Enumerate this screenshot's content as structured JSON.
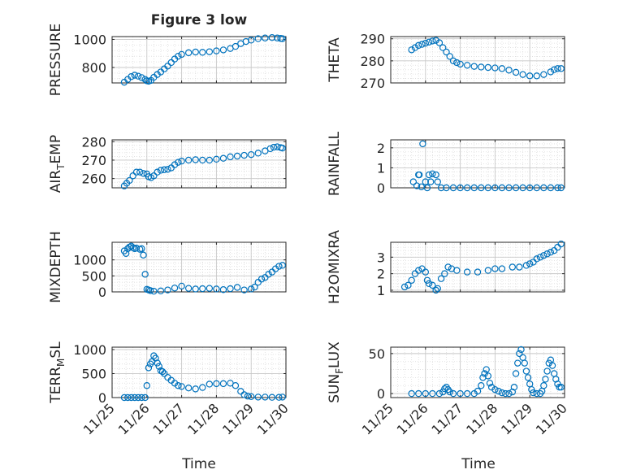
{
  "title": "Figure 3 low",
  "x_tick_labels": [
    "11/25",
    "11/26",
    "11/27",
    "11/28",
    "11/29",
    "11/30"
  ],
  "xlabel": "Time",
  "marker_color": "#0072BD",
  "chart_data": [
    {
      "type": "scatter",
      "ylabel": "PRESSURE",
      "xlim": [
        0,
        5
      ],
      "ylim": [
        690,
        1020
      ],
      "yticks": [
        800,
        1000
      ],
      "grid": true,
      "minor_grid": true,
      "points": [
        [
          0.35,
          695
        ],
        [
          0.45,
          715
        ],
        [
          0.55,
          735
        ],
        [
          0.65,
          745
        ],
        [
          0.75,
          738
        ],
        [
          0.85,
          728
        ],
        [
          0.95,
          715
        ],
        [
          1.0,
          705
        ],
        [
          1.05,
          702
        ],
        [
          1.12,
          708
        ],
        [
          1.2,
          730
        ],
        [
          1.3,
          750
        ],
        [
          1.4,
          768
        ],
        [
          1.5,
          790
        ],
        [
          1.6,
          810
        ],
        [
          1.7,
          835
        ],
        [
          1.8,
          860
        ],
        [
          1.9,
          880
        ],
        [
          2.0,
          893
        ],
        [
          2.2,
          905
        ],
        [
          2.4,
          910
        ],
        [
          2.6,
          908
        ],
        [
          2.8,
          912
        ],
        [
          3.0,
          918
        ],
        [
          3.2,
          925
        ],
        [
          3.4,
          935
        ],
        [
          3.55,
          950
        ],
        [
          3.7,
          970
        ],
        [
          3.85,
          985
        ],
        [
          4.0,
          995
        ],
        [
          4.2,
          1005
        ],
        [
          4.4,
          1010
        ],
        [
          4.6,
          1013
        ],
        [
          4.75,
          1010
        ],
        [
          4.85,
          1007
        ],
        [
          4.9,
          1005
        ]
      ]
    },
    {
      "type": "scatter",
      "ylabel": "THETA",
      "xlim": [
        0,
        5
      ],
      "ylim": [
        270,
        291
      ],
      "yticks": [
        270,
        280,
        290
      ],
      "grid": true,
      "minor_grid": true,
      "points": [
        [
          0.6,
          285
        ],
        [
          0.7,
          286
        ],
        [
          0.8,
          287
        ],
        [
          0.9,
          287.5
        ],
        [
          1.0,
          288
        ],
        [
          1.1,
          288.5
        ],
        [
          1.2,
          289
        ],
        [
          1.3,
          289.3
        ],
        [
          1.4,
          288.2
        ],
        [
          1.5,
          286
        ],
        [
          1.6,
          284
        ],
        [
          1.7,
          282
        ],
        [
          1.8,
          280
        ],
        [
          1.9,
          279.2
        ],
        [
          2.0,
          278.5
        ],
        [
          2.2,
          278
        ],
        [
          2.4,
          277.5
        ],
        [
          2.6,
          277.2
        ],
        [
          2.8,
          277
        ],
        [
          3.0,
          276.8
        ],
        [
          3.2,
          276.5
        ],
        [
          3.4,
          275.8
        ],
        [
          3.6,
          274.8
        ],
        [
          3.8,
          273.8
        ],
        [
          4.0,
          273.2
        ],
        [
          4.2,
          273.2
        ],
        [
          4.4,
          273.8
        ],
        [
          4.6,
          275
        ],
        [
          4.7,
          276
        ],
        [
          4.8,
          276.5
        ],
        [
          4.9,
          276.5
        ]
      ]
    },
    {
      "type": "scatter",
      "ylabel": "AIR_TEMP",
      "xlim": [
        0,
        5
      ],
      "ylim": [
        255,
        281
      ],
      "yticks": [
        260,
        270,
        280
      ],
      "grid": true,
      "minor_grid": true,
      "points": [
        [
          0.35,
          256
        ],
        [
          0.42,
          257.5
        ],
        [
          0.5,
          259
        ],
        [
          0.6,
          261.5
        ],
        [
          0.7,
          263.5
        ],
        [
          0.8,
          263.5
        ],
        [
          0.9,
          262.8
        ],
        [
          1.0,
          262.5
        ],
        [
          1.05,
          261
        ],
        [
          1.12,
          260.5
        ],
        [
          1.2,
          261.5
        ],
        [
          1.3,
          263.5
        ],
        [
          1.4,
          264.5
        ],
        [
          1.5,
          264.8
        ],
        [
          1.6,
          265
        ],
        [
          1.7,
          265.8
        ],
        [
          1.8,
          267.5
        ],
        [
          1.9,
          268.8
        ],
        [
          2.0,
          269.5
        ],
        [
          2.2,
          270
        ],
        [
          2.4,
          270.2
        ],
        [
          2.6,
          270
        ],
        [
          2.8,
          270
        ],
        [
          3.0,
          270.5
        ],
        [
          3.2,
          271
        ],
        [
          3.4,
          271.8
        ],
        [
          3.6,
          272.2
        ],
        [
          3.8,
          272.6
        ],
        [
          4.0,
          273
        ],
        [
          4.2,
          273.8
        ],
        [
          4.4,
          275
        ],
        [
          4.55,
          276.2
        ],
        [
          4.65,
          277
        ],
        [
          4.75,
          277.2
        ],
        [
          4.85,
          276.8
        ],
        [
          4.9,
          276.5
        ]
      ]
    },
    {
      "type": "scatter",
      "ylabel": "RAINFALL",
      "xlim": [
        0,
        5
      ],
      "ylim": [
        0,
        2.4
      ],
      "yticks": [
        0,
        1,
        2
      ],
      "grid": true,
      "minor_grid": true,
      "points": [
        [
          0.65,
          0.3
        ],
        [
          0.75,
          0.1
        ],
        [
          0.8,
          0.65
        ],
        [
          0.82,
          0.65
        ],
        [
          0.88,
          0.05
        ],
        [
          0.92,
          2.2
        ],
        [
          1.0,
          0.3
        ],
        [
          1.05,
          0.0
        ],
        [
          1.1,
          0.65
        ],
        [
          1.15,
          0.3
        ],
        [
          1.2,
          0.7
        ],
        [
          1.3,
          0.65
        ],
        [
          1.35,
          0.3
        ],
        [
          1.45,
          0.0
        ],
        [
          1.6,
          0.0
        ],
        [
          1.8,
          0.0
        ],
        [
          2.0,
          0.0
        ],
        [
          2.2,
          0.0
        ],
        [
          2.4,
          0.0
        ],
        [
          2.6,
          0.0
        ],
        [
          2.8,
          0.0
        ],
        [
          3.0,
          0.0
        ],
        [
          3.2,
          0.0
        ],
        [
          3.4,
          0.0
        ],
        [
          3.6,
          0.0
        ],
        [
          3.8,
          0.0
        ],
        [
          4.0,
          0.0
        ],
        [
          4.2,
          0.0
        ],
        [
          4.4,
          0.0
        ],
        [
          4.6,
          0.0
        ],
        [
          4.8,
          0.0
        ],
        [
          4.9,
          0.0
        ]
      ]
    },
    {
      "type": "scatter",
      "ylabel": "MIXDEPTH",
      "xlim": [
        0,
        5
      ],
      "ylim": [
        0,
        1550
      ],
      "yticks": [
        0,
        500,
        1000
      ],
      "grid": true,
      "minor_grid": true,
      "points": [
        [
          0.35,
          1280
        ],
        [
          0.4,
          1200
        ],
        [
          0.45,
          1350
        ],
        [
          0.5,
          1400
        ],
        [
          0.55,
          1430
        ],
        [
          0.6,
          1380
        ],
        [
          0.65,
          1350
        ],
        [
          0.7,
          1370
        ],
        [
          0.8,
          1330
        ],
        [
          0.85,
          1350
        ],
        [
          0.9,
          1150
        ],
        [
          0.95,
          550
        ],
        [
          1.0,
          80
        ],
        [
          1.05,
          60
        ],
        [
          1.1,
          40
        ],
        [
          1.2,
          20
        ],
        [
          1.4,
          30
        ],
        [
          1.6,
          60
        ],
        [
          1.8,
          120
        ],
        [
          2.0,
          180
        ],
        [
          2.2,
          110
        ],
        [
          2.4,
          90
        ],
        [
          2.6,
          100
        ],
        [
          2.8,
          110
        ],
        [
          3.0,
          90
        ],
        [
          3.2,
          70
        ],
        [
          3.4,
          100
        ],
        [
          3.6,
          140
        ],
        [
          3.8,
          60
        ],
        [
          4.0,
          90
        ],
        [
          4.1,
          150
        ],
        [
          4.2,
          300
        ],
        [
          4.3,
          400
        ],
        [
          4.4,
          450
        ],
        [
          4.5,
          550
        ],
        [
          4.6,
          620
        ],
        [
          4.7,
          720
        ],
        [
          4.8,
          800
        ],
        [
          4.9,
          830
        ]
      ]
    },
    {
      "type": "scatter",
      "ylabel": "H2OMIXRA",
      "xlim": [
        0,
        5
      ],
      "ylim": [
        0.9,
        3.9
      ],
      "yticks": [
        1,
        2,
        3
      ],
      "grid": true,
      "minor_grid": true,
      "points": [
        [
          0.4,
          1.2
        ],
        [
          0.5,
          1.3
        ],
        [
          0.6,
          1.6
        ],
        [
          0.7,
          2.0
        ],
        [
          0.8,
          2.2
        ],
        [
          0.9,
          2.3
        ],
        [
          1.0,
          2.1
        ],
        [
          1.05,
          1.6
        ],
        [
          1.1,
          1.4
        ],
        [
          1.2,
          1.3
        ],
        [
          1.3,
          1.0
        ],
        [
          1.35,
          1.1
        ],
        [
          1.45,
          1.7
        ],
        [
          1.55,
          2.0
        ],
        [
          1.65,
          2.4
        ],
        [
          1.75,
          2.3
        ],
        [
          1.9,
          2.2
        ],
        [
          2.2,
          2.1
        ],
        [
          2.5,
          2.1
        ],
        [
          2.8,
          2.2
        ],
        [
          3.0,
          2.3
        ],
        [
          3.2,
          2.3
        ],
        [
          3.5,
          2.4
        ],
        [
          3.7,
          2.4
        ],
        [
          3.9,
          2.5
        ],
        [
          4.0,
          2.6
        ],
        [
          4.1,
          2.7
        ],
        [
          4.2,
          2.9
        ],
        [
          4.3,
          3.0
        ],
        [
          4.4,
          3.1
        ],
        [
          4.5,
          3.2
        ],
        [
          4.6,
          3.3
        ],
        [
          4.7,
          3.4
        ],
        [
          4.8,
          3.6
        ],
        [
          4.9,
          3.8
        ]
      ]
    },
    {
      "type": "scatter",
      "ylabel": "TERR_MSL",
      "xlim": [
        0,
        5
      ],
      "ylim": [
        0,
        1050
      ],
      "yticks": [
        0,
        500,
        1000
      ],
      "grid": true,
      "minor_grid": true,
      "points": [
        [
          0.35,
          0
        ],
        [
          0.45,
          0
        ],
        [
          0.55,
          0
        ],
        [
          0.65,
          0
        ],
        [
          0.75,
          0
        ],
        [
          0.85,
          0
        ],
        [
          0.95,
          0
        ],
        [
          1.0,
          250
        ],
        [
          1.05,
          620
        ],
        [
          1.1,
          700
        ],
        [
          1.15,
          750
        ],
        [
          1.2,
          870
        ],
        [
          1.25,
          820
        ],
        [
          1.3,
          720
        ],
        [
          1.35,
          650
        ],
        [
          1.4,
          560
        ],
        [
          1.45,
          540
        ],
        [
          1.5,
          500
        ],
        [
          1.6,
          420
        ],
        [
          1.7,
          360
        ],
        [
          1.8,
          300
        ],
        [
          1.9,
          250
        ],
        [
          2.0,
          230
        ],
        [
          2.2,
          200
        ],
        [
          2.4,
          180
        ],
        [
          2.6,
          210
        ],
        [
          2.8,
          280
        ],
        [
          3.0,
          290
        ],
        [
          3.2,
          290
        ],
        [
          3.4,
          300
        ],
        [
          3.55,
          250
        ],
        [
          3.7,
          130
        ],
        [
          3.8,
          60
        ],
        [
          3.9,
          30
        ],
        [
          4.0,
          20
        ],
        [
          4.2,
          10
        ],
        [
          4.4,
          10
        ],
        [
          4.6,
          5
        ],
        [
          4.8,
          5
        ],
        [
          4.9,
          10
        ]
      ]
    },
    {
      "type": "scatter",
      "ylabel": "SUN_FLUX",
      "xlim": [
        0,
        5
      ],
      "ylim": [
        -5,
        58
      ],
      "yticks": [
        0,
        50
      ],
      "grid": true,
      "minor_grid": true,
      "points": [
        [
          0.6,
          0
        ],
        [
          0.8,
          0
        ],
        [
          1.0,
          0
        ],
        [
          1.2,
          0
        ],
        [
          1.4,
          0
        ],
        [
          1.5,
          2
        ],
        [
          1.55,
          6
        ],
        [
          1.6,
          8
        ],
        [
          1.65,
          5
        ],
        [
          1.7,
          2
        ],
        [
          1.8,
          0
        ],
        [
          2.0,
          0
        ],
        [
          2.2,
          0
        ],
        [
          2.4,
          0
        ],
        [
          2.5,
          3
        ],
        [
          2.6,
          10
        ],
        [
          2.65,
          20
        ],
        [
          2.7,
          25
        ],
        [
          2.75,
          30
        ],
        [
          2.8,
          22
        ],
        [
          2.85,
          13
        ],
        [
          2.9,
          8
        ],
        [
          3.0,
          5
        ],
        [
          3.1,
          3
        ],
        [
          3.2,
          1
        ],
        [
          3.3,
          0
        ],
        [
          3.4,
          0
        ],
        [
          3.5,
          2
        ],
        [
          3.55,
          8
        ],
        [
          3.6,
          25
        ],
        [
          3.65,
          38
        ],
        [
          3.7,
          50
        ],
        [
          3.75,
          55
        ],
        [
          3.8,
          45
        ],
        [
          3.85,
          38
        ],
        [
          3.9,
          28
        ],
        [
          3.95,
          20
        ],
        [
          4.0,
          12
        ],
        [
          4.05,
          5
        ],
        [
          4.1,
          1
        ],
        [
          4.2,
          0
        ],
        [
          4.3,
          0
        ],
        [
          4.35,
          3
        ],
        [
          4.4,
          10
        ],
        [
          4.45,
          18
        ],
        [
          4.5,
          28
        ],
        [
          4.55,
          38
        ],
        [
          4.6,
          42
        ],
        [
          4.65,
          35
        ],
        [
          4.7,
          25
        ],
        [
          4.75,
          18
        ],
        [
          4.8,
          12
        ],
        [
          4.85,
          8
        ],
        [
          4.9,
          8
        ]
      ]
    }
  ]
}
